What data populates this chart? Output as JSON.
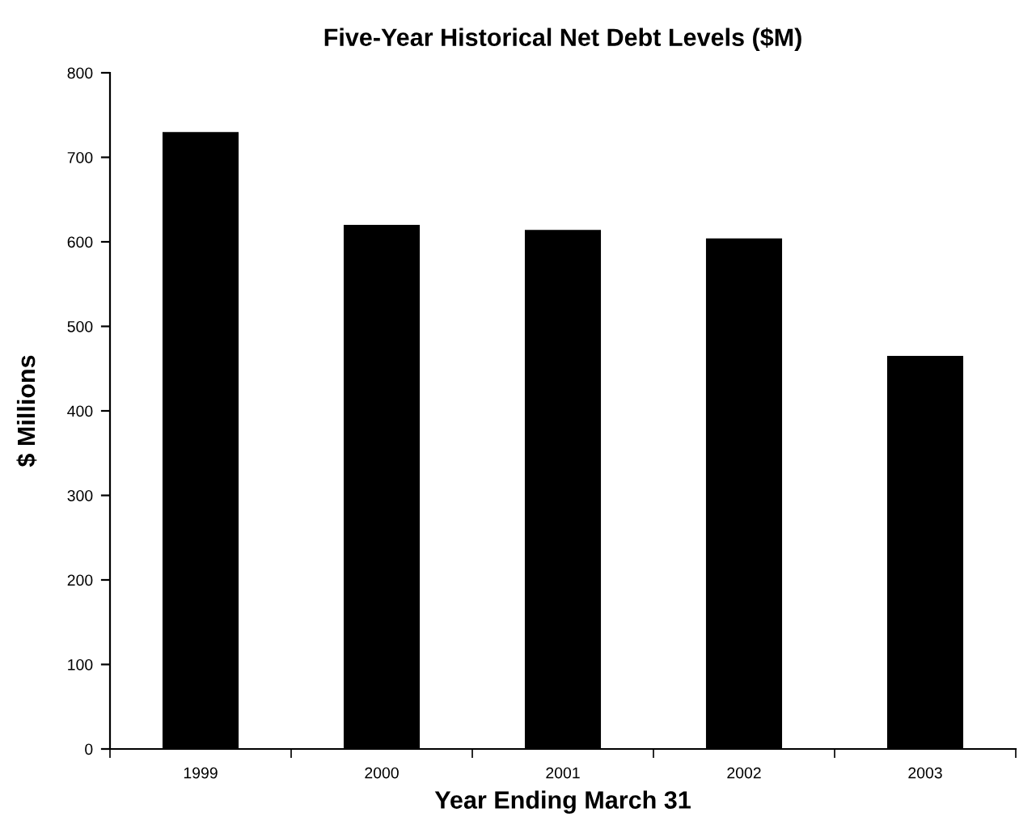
{
  "chart_data": {
    "type": "bar",
    "title": "Five-Year Historical Net Debt Levels ($M)",
    "xlabel": "Year Ending March 31",
    "ylabel": "$ Millions",
    "categories": [
      "1999",
      "2000",
      "2001",
      "2002",
      "2003"
    ],
    "values": [
      730,
      620,
      614,
      604,
      465
    ],
    "color": "#000000",
    "ylim": [
      0,
      800
    ],
    "yticks": [
      0,
      100,
      200,
      300,
      400,
      500,
      600,
      700,
      800
    ],
    "grid": false
  }
}
